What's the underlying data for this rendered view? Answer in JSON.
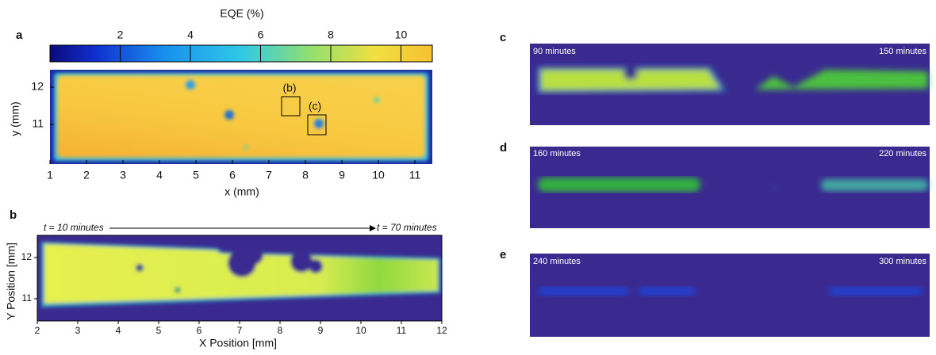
{
  "panels": {
    "a": {
      "label": "a",
      "colorbar": {
        "title": "EQE (%)",
        "ticks": [
          2,
          4,
          6,
          8,
          10
        ]
      },
      "x_axis": {
        "label": "x (mm)",
        "ticks": [
          1,
          2,
          3,
          4,
          5,
          6,
          7,
          8,
          9,
          10,
          11
        ]
      },
      "y_axis": {
        "label": "y (mm)",
        "ticks": [
          12,
          11
        ]
      },
      "annotations": [
        "(b)",
        "(c)"
      ]
    },
    "b": {
      "label": "b",
      "time_start": "t = 10 minutes",
      "time_end": "t = 70 minutes",
      "x_axis": {
        "label": "X Position [mm]",
        "ticks": [
          2,
          3,
          4,
          5,
          6,
          7,
          8,
          9,
          10,
          11,
          12
        ]
      },
      "y_axis": {
        "label": "Y Position [mm]",
        "ticks": [
          12,
          11
        ]
      }
    },
    "c": {
      "label": "c",
      "time_start": "90 minutes",
      "time_end": "150 minutes"
    },
    "d": {
      "label": "d",
      "time_start": "160 minutes",
      "time_end": "220 minutes"
    },
    "e": {
      "label": "e",
      "time_start": "240 minutes",
      "time_end": "300 minutes"
    }
  }
}
